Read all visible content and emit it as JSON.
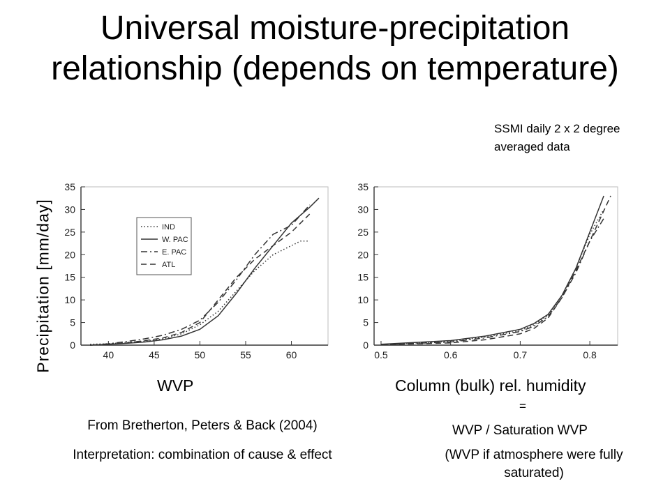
{
  "slide": {
    "title": "Universal moisture-precipitation relationship (depends on temperature)",
    "note": "SSMI daily 2 x 2 degree averaged data",
    "ylabel": "Precipitation [mm/day]",
    "left_xlabel": "WVP",
    "right_xlabel": "Column (bulk) rel. humidity",
    "equals": "=",
    "source": "From Bretherton, Peters & Back (2004)",
    "interpretation": "Interpretation: combination of cause & effect",
    "definition": "WVP / Saturation WVP",
    "definition_note": "(WVP if atmosphere were fully saturated)"
  },
  "chart_data": [
    {
      "type": "line",
      "xlim": [
        37,
        64
      ],
      "ylim": [
        0,
        35
      ],
      "xticks": [
        40,
        45,
        50,
        55,
        60
      ],
      "yticks": [
        0,
        5,
        10,
        15,
        20,
        25,
        30,
        35
      ],
      "legend_position": "top-left",
      "series": [
        {
          "name": "IND",
          "style": "dotted",
          "x": [
            38,
            40,
            42,
            44,
            46,
            48,
            50,
            52,
            54,
            56,
            58,
            60,
            61,
            62
          ],
          "y": [
            0.2,
            0.3,
            0.6,
            0.9,
            1.4,
            2.5,
            4.5,
            7.5,
            12,
            16.5,
            20,
            22,
            23,
            23
          ]
        },
        {
          "name": "W. PAC",
          "style": "solid",
          "x": [
            38,
            40,
            42,
            44,
            46,
            48,
            50,
            52,
            54,
            56,
            58,
            60,
            62,
            63
          ],
          "y": [
            0,
            0.2,
            0.4,
            0.7,
            1.2,
            2.0,
            3.5,
            6.5,
            11.5,
            17,
            22,
            27,
            30.5,
            32.5
          ]
        },
        {
          "name": "E. PAC",
          "style": "dash-dot",
          "x": [
            38,
            40,
            42,
            44,
            46,
            48,
            50,
            52,
            54,
            56,
            58,
            60,
            62
          ],
          "y": [
            0,
            0.3,
            0.8,
            1.4,
            2.2,
            3.5,
            5.5,
            9.5,
            14.5,
            20,
            24.5,
            26.5,
            31
          ]
        },
        {
          "name": "ATL",
          "style": "dashed",
          "x": [
            38,
            40,
            42,
            44,
            46,
            48,
            50,
            52,
            54,
            56,
            58,
            60,
            62
          ],
          "y": [
            0,
            0.2,
            0.5,
            1.0,
            1.6,
            2.8,
            5.0,
            10,
            15,
            19,
            22,
            25,
            29
          ]
        }
      ]
    },
    {
      "type": "line",
      "xlim": [
        0.49,
        0.84
      ],
      "ylim": [
        0,
        35
      ],
      "xticks": [
        0.5,
        0.6,
        0.7,
        0.8
      ],
      "yticks": [
        0,
        5,
        10,
        15,
        20,
        25,
        30,
        35
      ],
      "series": [
        {
          "style": "solid",
          "x": [
            0.5,
            0.6,
            0.65,
            0.7,
            0.72,
            0.74,
            0.76,
            0.78,
            0.8,
            0.82
          ],
          "y": [
            0.2,
            1.0,
            2.0,
            3.5,
            4.8,
            6.8,
            11,
            17,
            25,
            33
          ]
        },
        {
          "style": "dash-dot",
          "x": [
            0.5,
            0.6,
            0.65,
            0.7,
            0.72,
            0.74,
            0.76,
            0.78,
            0.8,
            0.82
          ],
          "y": [
            0.1,
            0.7,
            1.6,
            3.0,
            4.2,
            6.3,
            10.5,
            16,
            23,
            28
          ]
        },
        {
          "style": "dashed",
          "x": [
            0.5,
            0.6,
            0.65,
            0.7,
            0.72,
            0.74,
            0.76,
            0.78,
            0.8,
            0.83
          ],
          "y": [
            0.1,
            0.5,
            1.2,
            2.5,
            3.7,
            6.0,
            10.5,
            16.5,
            23,
            33
          ]
        },
        {
          "style": "dotted",
          "x": [
            0.5,
            0.6,
            0.65,
            0.7,
            0.72,
            0.74,
            0.76,
            0.78,
            0.8,
            0.82
          ],
          "y": [
            0.15,
            0.8,
            1.8,
            3.2,
            4.5,
            6.6,
            11,
            17,
            24.5,
            30
          ]
        }
      ]
    }
  ]
}
